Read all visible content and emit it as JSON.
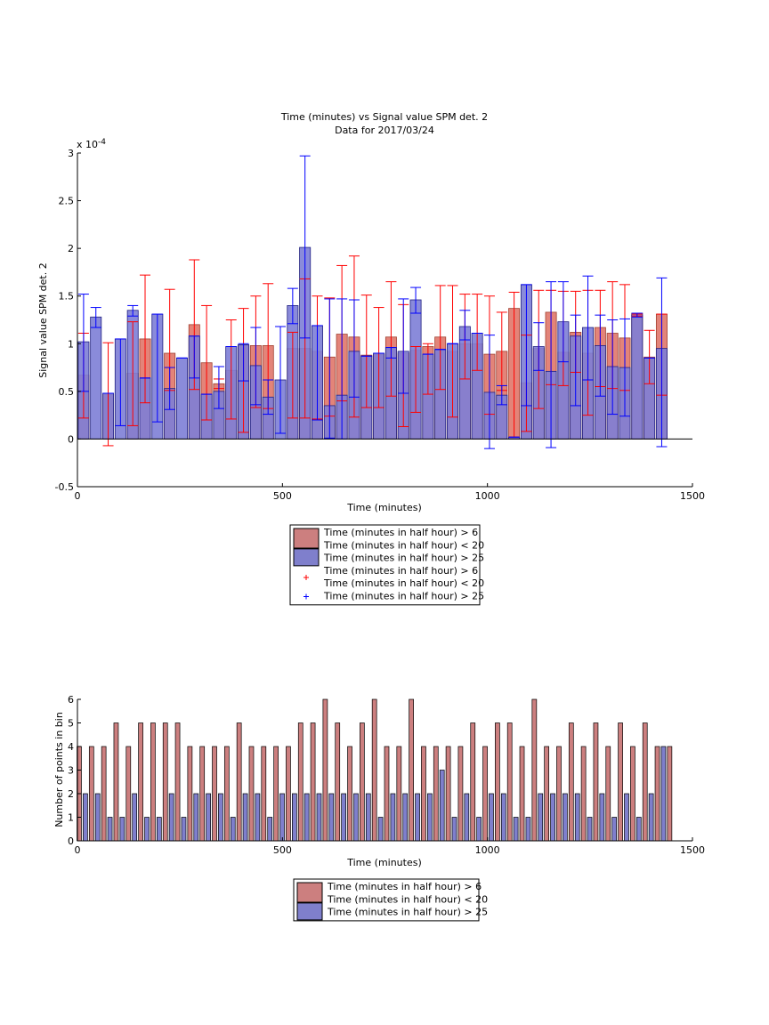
{
  "chart_data": [
    {
      "type": "bar",
      "title": "Time (minutes) vs Signal value SPM det. 2",
      "subtitle": "Data for 2017/03/24",
      "xlabel": "Time (minutes)",
      "ylabel": "Signal value SPM det. 2",
      "exponent_label": "x 10",
      "exponent_power": "-4",
      "xlim": [
        0,
        1500
      ],
      "ylim": [
        -0.5,
        3
      ],
      "xticks": [
        0,
        500,
        1000,
        1500
      ],
      "yticks": [
        -0.5,
        0,
        0.5,
        1,
        1.5,
        2,
        2.5,
        3
      ],
      "grid": false,
      "legend": {
        "placement": "below",
        "entries": [
          {
            "label": "Time (minutes in half hour) > 6",
            "color": "#cc7f7f"
          },
          {
            "label": "Time (minutes in half hour) < 20",
            "color": ""
          },
          {
            "label": "Time (minutes in half hour) > 25",
            "color": "#7f7fcc"
          },
          {
            "label": "Time (minutes in half hour) > 6",
            "color": "#ff0000"
          },
          {
            "label": "Time (minutes in half hour) < 20",
            "color": ""
          },
          {
            "label": "Time (minutes in half hour) > 25",
            "color": "#0000ff"
          }
        ]
      },
      "series": [
        {
          "color_fill": "#e0776a",
          "color_edge": "#ff0000",
          "x": [
            15,
            75,
            135,
            165,
            225,
            285,
            315,
            345,
            375,
            405,
            435,
            465,
            525,
            555,
            585,
            615,
            645,
            675,
            705,
            735,
            765,
            795,
            825,
            855,
            885,
            915,
            945,
            975,
            1005,
            1035,
            1065,
            1095,
            1125,
            1155,
            1185,
            1215,
            1245,
            1275,
            1305,
            1335,
            1365,
            1395,
            1425
          ],
          "y": [
            0.67,
            0.47,
            0.69,
            1.05,
            0.9,
            1.2,
            0.8,
            0.58,
            0.72,
            0.98,
            0.98,
            0.98,
            0.95,
            0.95,
            0.92,
            0.86,
            1.1,
            1.07,
            0.88,
            0.89,
            1.07,
            0.9,
            0.93,
            0.97,
            1.07,
            0.92,
            1.0,
            1.0,
            0.89,
            0.92,
            1.37,
            0.59,
            0.95,
            1.33,
            0.91,
            1.12,
            0.9,
            1.17,
            1.11,
            1.06,
            1.3,
            0.86,
            1.31
          ],
          "err_low": [
            0.22,
            -0.07,
            0.14,
            0.38,
            0.51,
            0.52,
            0.2,
            0.53,
            0.21,
            0.07,
            0.33,
            0.32,
            0.22,
            0.22,
            0.21,
            0.24,
            0.4,
            0.23,
            0.33,
            0.33,
            0.45,
            0.13,
            0.28,
            0.47,
            0.52,
            0.23,
            0.63,
            0.72,
            0.26,
            0.51,
            0.02,
            0.08,
            0.32,
            0.57,
            0.56,
            0.7,
            0.25,
            0.55,
            0.53,
            0.51,
            1.29,
            0.58,
            0.46
          ],
          "err_high": [
            1.11,
            1.01,
            1.23,
            1.72,
            1.57,
            1.88,
            1.4,
            0.63,
            1.25,
            1.37,
            1.5,
            1.63,
            1.12,
            1.68,
            1.5,
            1.48,
            1.82,
            1.92,
            1.51,
            1.38,
            1.65,
            1.41,
            0.97,
            1.0,
            1.61,
            1.61,
            1.52,
            1.52,
            1.5,
            1.33,
            1.54,
            1.09,
            1.56,
            1.56,
            1.55,
            1.55,
            1.56,
            1.56,
            1.65,
            1.62,
            1.31,
            1.14,
            1.31
          ]
        },
        {
          "color_fill": "#7d7ed6",
          "color_edge": "#0000ff",
          "x": [
            15,
            45,
            75,
            105,
            135,
            165,
            195,
            225,
            255,
            285,
            315,
            345,
            375,
            405,
            435,
            465,
            495,
            525,
            555,
            585,
            615,
            645,
            675,
            705,
            735,
            765,
            795,
            825,
            855,
            885,
            915,
            945,
            975,
            1005,
            1035,
            1065,
            1095,
            1125,
            1155,
            1185,
            1215,
            1245,
            1275,
            1305,
            1335,
            1365,
            1395,
            1425
          ],
          "y": [
            1.02,
            1.28,
            0.48,
            1.05,
            1.35,
            0.64,
            1.31,
            0.53,
            0.85,
            1.08,
            0.47,
            0.5,
            0.97,
            0.99,
            0.77,
            0.44,
            0.62,
            1.4,
            2.01,
            1.19,
            0.35,
            0.46,
            0.92,
            0.87,
            0.9,
            0.96,
            0.92,
            1.46,
            0.89,
            0.94,
            1.0,
            1.18,
            1.11,
            0.49,
            0.46,
            0.02,
            1.62,
            0.97,
            0.71,
            1.23,
            1.08,
            1.17,
            0.98,
            0.76,
            0.75,
            1.32,
            0.85,
            0.95
          ],
          "err_low": [
            0.5,
            1.17,
            0.48,
            0.14,
            1.29,
            0.64,
            0.18,
            0.31,
            0.85,
            0.64,
            0.47,
            0.32,
            0.97,
            0.61,
            0.36,
            0.26,
            0.06,
            1.21,
            1.06,
            0.2,
            0.01,
            0.0,
            0.44,
            0.87,
            0.9,
            0.85,
            0.48,
            1.32,
            0.89,
            0.94,
            1.0,
            1.04,
            1.11,
            -0.1,
            0.36,
            0.02,
            0.35,
            0.72,
            -0.09,
            0.81,
            0.35,
            0.62,
            0.45,
            0.26,
            0.24,
            1.28,
            0.85,
            -0.08
          ],
          "err_high": [
            1.52,
            1.38,
            0.48,
            1.05,
            1.4,
            0.64,
            1.31,
            0.75,
            0.85,
            1.08,
            0.47,
            0.76,
            0.97,
            1.0,
            1.17,
            0.62,
            1.18,
            1.58,
            2.97,
            1.19,
            1.47,
            1.47,
            1.46,
            0.87,
            0.9,
            0.96,
            1.47,
            1.59,
            0.89,
            0.94,
            1.0,
            1.35,
            1.11,
            1.09,
            0.56,
            0.02,
            1.62,
            1.22,
            1.65,
            1.65,
            1.3,
            1.71,
            1.3,
            1.25,
            1.26,
            1.32,
            0.85,
            1.69
          ]
        }
      ]
    },
    {
      "type": "bar",
      "xlabel": "Time (minutes)",
      "ylabel": "Number of points in bin",
      "xlim": [
        0,
        1500
      ],
      "ylim": [
        0,
        6
      ],
      "xticks": [
        0,
        500,
        1000,
        1500
      ],
      "yticks": [
        0,
        1,
        2,
        3,
        4,
        5,
        6
      ],
      "grid": false,
      "legend": {
        "placement": "below",
        "entries": [
          {
            "label": "Time (minutes in half hour) > 6",
            "color": "#cc7f7f"
          },
          {
            "label": "Time (minutes in half hour) < 20",
            "color": ""
          },
          {
            "label": "Time (minutes in half hour) > 25",
            "color": "#7f7fcc"
          }
        ]
      },
      "series": [
        {
          "color_fill": "#cc7f7f",
          "x": [
            0,
            30,
            60,
            90,
            120,
            150,
            180,
            210,
            240,
            270,
            300,
            330,
            360,
            390,
            420,
            450,
            480,
            510,
            540,
            570,
            600,
            630,
            660,
            690,
            720,
            750,
            780,
            810,
            840,
            870,
            900,
            930,
            960,
            990,
            1020,
            1050,
            1080,
            1110,
            1140,
            1170,
            1200,
            1230,
            1260,
            1290,
            1320,
            1350,
            1380,
            1410,
            1440
          ],
          "y": [
            4,
            4,
            4,
            5,
            4,
            5,
            5,
            5,
            5,
            4,
            4,
            4,
            4,
            5,
            4,
            4,
            4,
            4,
            5,
            5,
            6,
            5,
            4,
            5,
            6,
            4,
            4,
            6,
            4,
            4,
            4,
            4,
            5,
            4,
            5,
            5,
            4,
            6,
            4,
            4,
            5,
            4,
            5,
            4,
            5,
            4,
            5,
            4,
            4
          ]
        },
        {
          "color_fill": "#7f7fcc",
          "x": [
            15,
            45,
            75,
            105,
            135,
            165,
            195,
            225,
            255,
            285,
            315,
            345,
            375,
            405,
            435,
            465,
            495,
            525,
            555,
            585,
            615,
            645,
            675,
            705,
            735,
            765,
            795,
            825,
            855,
            885,
            915,
            945,
            975,
            1005,
            1035,
            1065,
            1095,
            1125,
            1155,
            1185,
            1215,
            1245,
            1275,
            1305,
            1335,
            1365,
            1395,
            1425
          ],
          "y": [
            2,
            2,
            1,
            1,
            2,
            1,
            1,
            2,
            1,
            2,
            2,
            2,
            1,
            2,
            2,
            1,
            2,
            2,
            2,
            2,
            2,
            2,
            2,
            2,
            1,
            2,
            2,
            2,
            2,
            3,
            1,
            2,
            1,
            2,
            2,
            1,
            1,
            2,
            2,
            2,
            2,
            1,
            2,
            1,
            2,
            1,
            2,
            4
          ]
        }
      ]
    }
  ]
}
